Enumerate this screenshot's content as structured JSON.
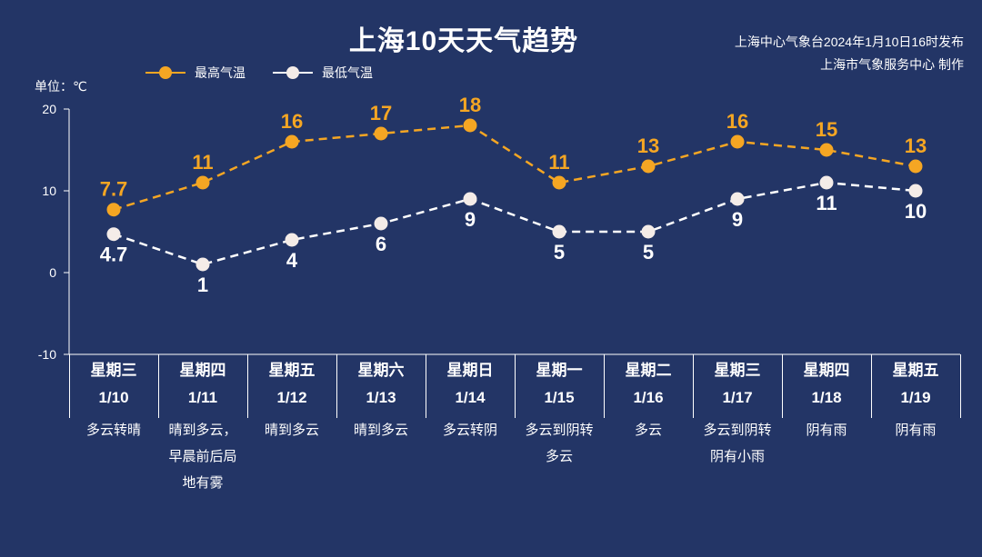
{
  "title": "上海10天天气趋势",
  "issuer_line1": "上海中心气象台2024年1月10日16时发布",
  "issuer_line2": "上海市气象服务中心 制作",
  "unit_label": "单位：℃",
  "colors": {
    "background": "#233566",
    "high": "#f5a623",
    "low": "#ffffff",
    "axis": "#ffffff"
  },
  "chart_data": {
    "type": "line",
    "categories": [
      "1/10",
      "1/11",
      "1/12",
      "1/13",
      "1/14",
      "1/15",
      "1/16",
      "1/17",
      "1/18",
      "1/19"
    ],
    "weekdays": [
      "星期三",
      "星期四",
      "星期五",
      "星期六",
      "星期日",
      "星期一",
      "星期二",
      "星期三",
      "星期四",
      "星期五"
    ],
    "weather": [
      "多云转晴",
      "晴到多云，早晨前后局地有雾",
      "晴到多云",
      "晴到多云",
      "多云转阴",
      "多云到阴转多云",
      "多云",
      "多云到阴转阴有小雨",
      "阴有雨",
      "阴有雨"
    ],
    "series": [
      {
        "name": "最高气温",
        "values": [
          7.7,
          11,
          16,
          17,
          18,
          11,
          13,
          16,
          15,
          13
        ],
        "labels": [
          "7.7",
          "11",
          "16",
          "17",
          "18",
          "11",
          "13",
          "16",
          "15",
          "13"
        ]
      },
      {
        "name": "最低气温",
        "values": [
          4.7,
          1,
          4,
          6,
          9,
          5,
          5,
          9,
          11,
          10
        ],
        "labels": [
          "4.7",
          "1",
          "4",
          "6",
          "9",
          "5",
          "5",
          "9",
          "11",
          "10"
        ]
      }
    ],
    "ylim": [
      -10,
      20
    ],
    "yticks": [
      "20",
      "10",
      "0",
      "-10"
    ],
    "ytick_values": [
      20,
      10,
      0,
      -10
    ],
    "grid": false,
    "legend": "top-left"
  }
}
